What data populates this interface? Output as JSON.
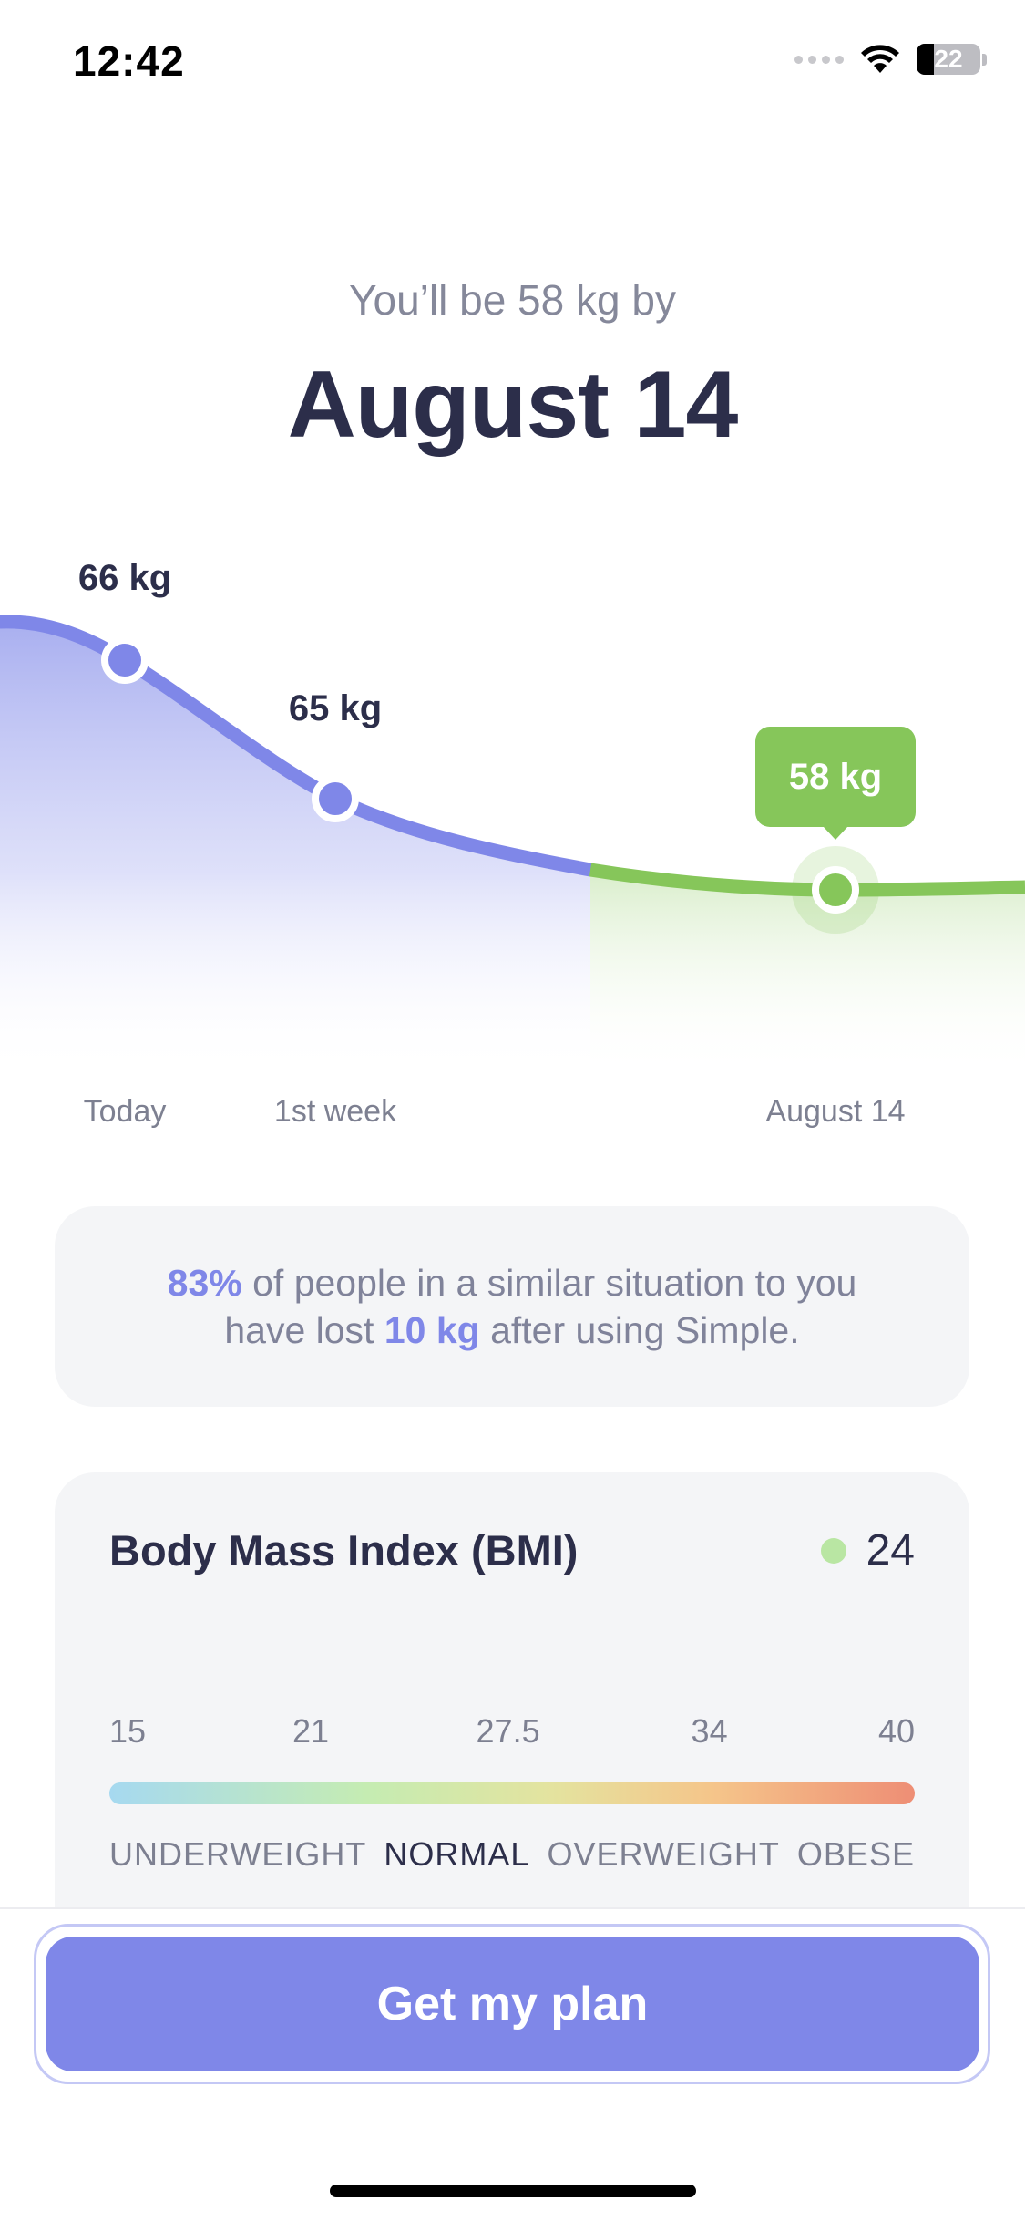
{
  "status": {
    "time": "12:42",
    "battery": "22"
  },
  "header": {
    "subtitle": "You’ll be 58 kg by",
    "title": "August 14"
  },
  "chart": {
    "points": [
      {
        "label": "66 kg",
        "x_label": "Today"
      },
      {
        "label": "65 kg",
        "x_label": "1st week"
      },
      {
        "label": "58 kg",
        "x_label": "August 14"
      }
    ],
    "colors": {
      "progress": "#7f87e8",
      "goal": "#86c65a"
    }
  },
  "stat": {
    "percent": "83%",
    "text1": " of people in a similar situation to you",
    "text2": "have lost ",
    "amount": "10 kg",
    "text3": " after using Simple."
  },
  "bmi": {
    "title": "Body Mass Index (BMI)",
    "value": "24",
    "ticks": [
      "15",
      "21",
      "27.5",
      "34",
      "40"
    ],
    "categories": [
      "UNDERWEIGHT",
      "NORMAL",
      "OVERWEIGHT",
      "OBESE"
    ],
    "active_category": "NORMAL"
  },
  "cta": {
    "label": "Get my plan"
  }
}
